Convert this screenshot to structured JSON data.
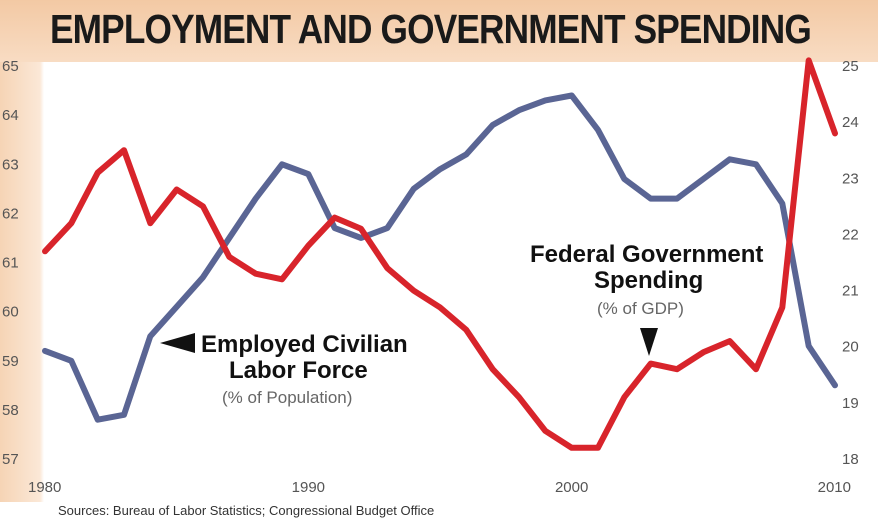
{
  "title": "EMPLOYMENT AND GOVERNMENT SPENDING",
  "source": "Sources: Bureau of Labor Statistics; Congressional Budget Office",
  "colors": {
    "employment": "#5a6594",
    "spending": "#d8242b",
    "header": "#f3c9a4"
  },
  "chart_data": {
    "type": "line",
    "title": "EMPLOYMENT AND GOVERNMENT SPENDING",
    "x": [
      1980,
      1981,
      1982,
      1983,
      1984,
      1985,
      1986,
      1987,
      1988,
      1989,
      1990,
      1991,
      1992,
      1993,
      1994,
      1995,
      1996,
      1997,
      1998,
      1999,
      2000,
      2001,
      2002,
      2003,
      2004,
      2005,
      2006,
      2007,
      2008,
      2009,
      2010
    ],
    "x_ticks": [
      "1980",
      "1990",
      "2000",
      "2010"
    ],
    "y_left_ticks": [
      "65",
      "64",
      "63",
      "62",
      "61",
      "60",
      "59",
      "58",
      "57"
    ],
    "y_right_ticks": [
      "25",
      "24",
      "23",
      "22",
      "21",
      "20",
      "19",
      "18"
    ],
    "ylim_left": [
      57,
      65
    ],
    "ylim_right": [
      18,
      25
    ],
    "grid": false,
    "series": [
      {
        "name": "Employed Civilian Labor Force",
        "unit": "(% of Population)",
        "axis": "left",
        "values": [
          59.2,
          59.0,
          57.8,
          57.9,
          59.5,
          60.1,
          60.7,
          61.5,
          62.3,
          63.0,
          62.8,
          61.7,
          61.5,
          61.7,
          62.5,
          62.9,
          63.2,
          63.8,
          64.1,
          64.3,
          64.4,
          63.7,
          62.7,
          62.3,
          62.3,
          62.7,
          63.1,
          63.0,
          62.2,
          59.3,
          58.5
        ]
      },
      {
        "name": "Federal Government Spending",
        "unit": "(% of GDP)",
        "axis": "right",
        "values": [
          21.7,
          22.2,
          23.1,
          23.5,
          22.2,
          22.8,
          22.5,
          21.6,
          21.3,
          21.2,
          21.8,
          22.3,
          22.1,
          21.4,
          21.0,
          20.7,
          20.3,
          19.6,
          19.1,
          18.5,
          18.2,
          18.2,
          19.1,
          19.7,
          19.6,
          19.9,
          20.1,
          19.6,
          20.7,
          25.1,
          23.8
        ]
      }
    ],
    "annotations": [
      {
        "lines": [
          "Employed Civilian",
          "Labor Force"
        ],
        "sub": "(% of Population)"
      },
      {
        "lines": [
          "Federal Government",
          "Spending"
        ],
        "sub": "(% of GDP)"
      }
    ]
  }
}
